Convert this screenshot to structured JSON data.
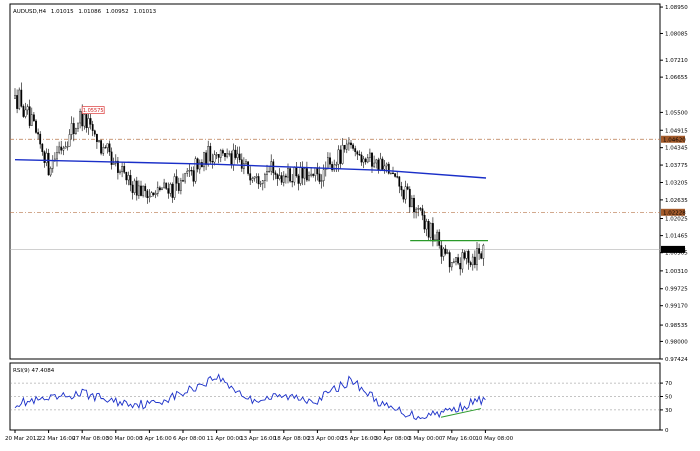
{
  "window": {
    "symbol_header": "AUDUSD,H4",
    "ohlc": [
      "1.01015",
      "1.01086",
      "1.00952",
      "1.01013"
    ]
  },
  "colors": {
    "background": "#ffffff",
    "candle": "#000000",
    "moving_average": "#1a2fc8",
    "horizontal_level": "#b8764a",
    "support_line": "#2a9a2a",
    "rsi_line": "#1a2fc8",
    "rsi_divergence": "#2a9a2a",
    "bid_line": "#b4b4b4",
    "high_label_border": "#e05050",
    "level_label_fill": "#a35a2a"
  },
  "price_axis": {
    "labels": [
      "1.08950",
      "1.08085",
      "1.07210",
      "1.06655",
      "1.05500",
      "1.04915",
      "1.04345",
      "1.03775",
      "1.03205",
      "1.02635",
      "1.02025",
      "1.01465",
      "1.00905",
      "1.00310",
      "0.99725",
      "0.99170",
      "0.98535",
      "0.98000",
      "0.97424"
    ],
    "level_high": "1.04620",
    "level_low": "1.02228",
    "current": "1.01013"
  },
  "annotations": {
    "high_label": "1.05575"
  },
  "rsi": {
    "header": "RSI(9) 47.4084",
    "levels": [
      "70",
      "50",
      "30",
      "0"
    ]
  },
  "time_axis": {
    "labels": [
      "20 Mar 2012",
      "22 Mar 16:00",
      "27 Mar 08:00",
      "30 Mar 00:00",
      "3 Apr 16:00",
      "6 Apr 08:00",
      "11 Apr 00:00",
      "13 Apr 16:00",
      "18 Apr 08:00",
      "23 Apr 00:00",
      "25 Apr 16:00",
      "30 Apr 08:00",
      "3 May 00:00",
      "7 May 16:00",
      "10 May 08:00"
    ]
  },
  "chart_data": {
    "type": "candlestick",
    "symbol": "AUDUSD",
    "timeframe": "H4",
    "x_start": "20 Mar 2012",
    "x_end": "10 May 08:00",
    "ylim": [
      0.97424,
      1.0905
    ],
    "price_path": [
      {
        "x": "20 Mar 2012",
        "y": 1.062
      },
      {
        "x": "22 Mar 16:00",
        "y": 1.038
      },
      {
        "x": "27 Mar 08:00",
        "y": 1.054
      },
      {
        "x": "30 Mar 00:00",
        "y": 1.036
      },
      {
        "x": "3 Apr 16:00",
        "y": 1.028
      },
      {
        "x": "6 Apr 08:00",
        "y": 1.032
      },
      {
        "x": "11 Apr 00:00",
        "y": 1.043
      },
      {
        "x": "13 Apr 16:00",
        "y": 1.036
      },
      {
        "x": "18 Apr 08:00",
        "y": 1.035
      },
      {
        "x": "23 Apr 00:00",
        "y": 1.033
      },
      {
        "x": "25 Apr 16:00",
        "y": 1.044
      },
      {
        "x": "30 Apr 08:00",
        "y": 1.037
      },
      {
        "x": "3 May 00:00",
        "y": 1.022
      },
      {
        "x": "7 May 16:00",
        "y": 1.005
      },
      {
        "x": "10 May 08:00",
        "y": 1.0101
      }
    ],
    "moving_average": [
      {
        "x": "20 Mar 2012",
        "y": 1.0395
      },
      {
        "x": "11 Apr 00:00",
        "y": 1.038
      },
      {
        "x": "30 Apr 08:00",
        "y": 1.036
      },
      {
        "x": "10 May 08:00",
        "y": 1.0335
      }
    ],
    "horizontal_levels": [
      1.0462,
      1.02228
    ],
    "support_line": {
      "y": 1.013,
      "from": "3 May 00:00",
      "to": "10 May 08:00"
    },
    "high_label_value": 1.05575,
    "rsi_series": [
      {
        "x": "20 Mar 2012",
        "y": 40
      },
      {
        "x": "22 Mar 16:00",
        "y": 45
      },
      {
        "x": "27 Mar 08:00",
        "y": 55
      },
      {
        "x": "30 Mar 00:00",
        "y": 42
      },
      {
        "x": "3 Apr 16:00",
        "y": 38
      },
      {
        "x": "6 Apr 08:00",
        "y": 55
      },
      {
        "x": "11 Apr 00:00",
        "y": 80
      },
      {
        "x": "13 Apr 16:00",
        "y": 45
      },
      {
        "x": "18 Apr 08:00",
        "y": 50
      },
      {
        "x": "23 Apr 00:00",
        "y": 45
      },
      {
        "x": "25 Apr 16:00",
        "y": 75
      },
      {
        "x": "30 Apr 08:00",
        "y": 35
      },
      {
        "x": "3 May 00:00",
        "y": 20
      },
      {
        "x": "7 May 16:00",
        "y": 30
      },
      {
        "x": "10 May 08:00",
        "y": 47.4
      }
    ],
    "rsi_levels": [
      70,
      50,
      30
    ]
  }
}
